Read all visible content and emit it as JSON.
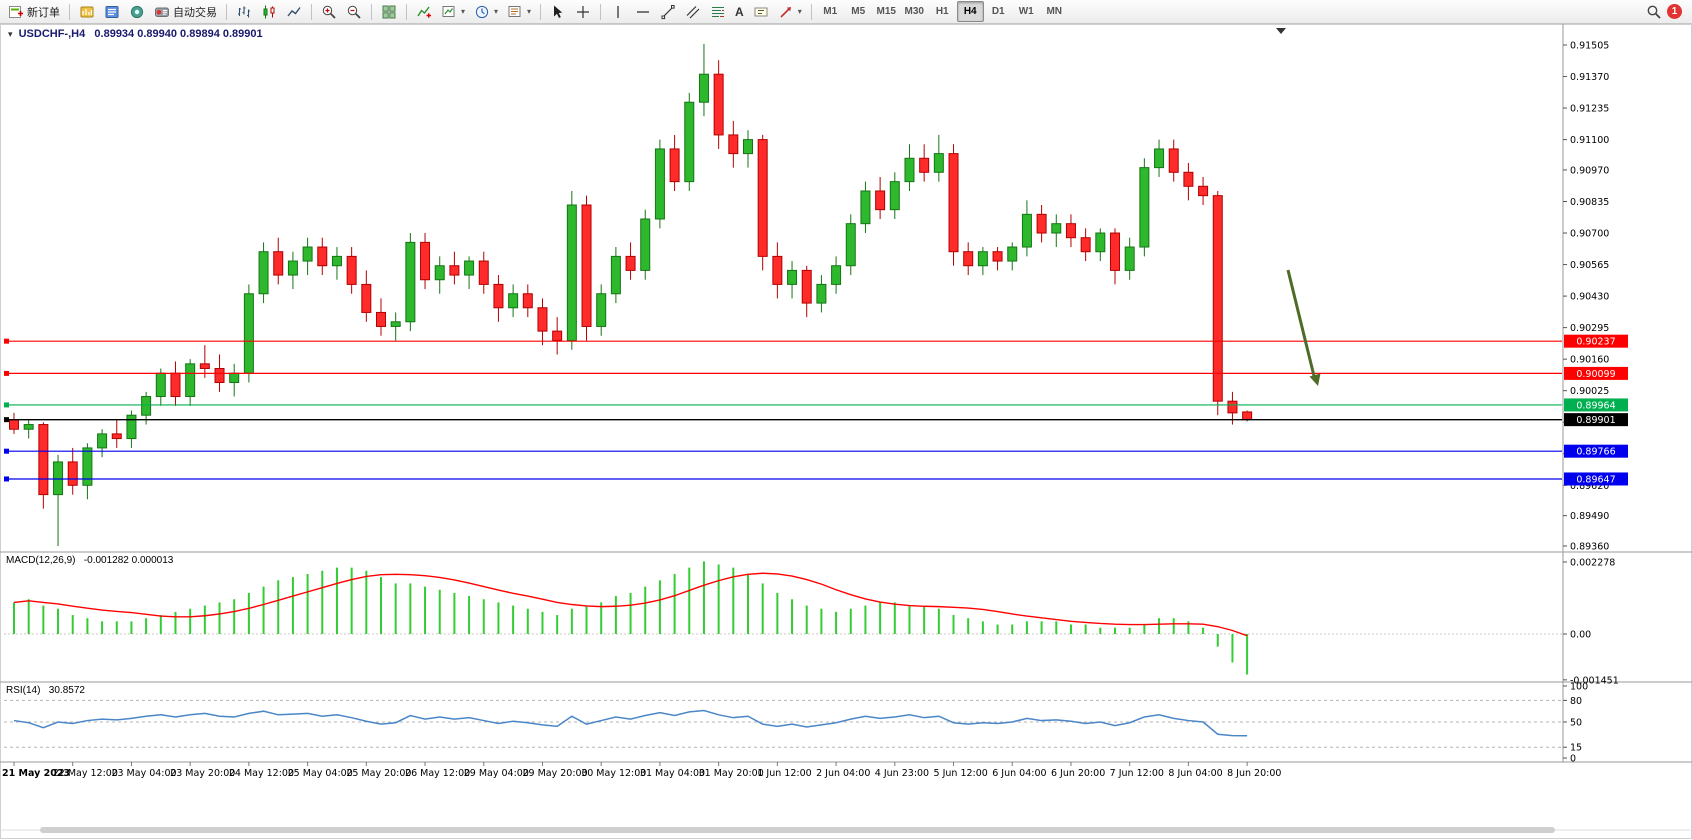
{
  "toolbar": {
    "new_order_label": "新订单",
    "auto_trading_label": "自动交易",
    "text_tool_label": "A",
    "timeframes": [
      "M1",
      "M5",
      "M15",
      "M30",
      "H1",
      "H4",
      "D1",
      "W1",
      "MN"
    ],
    "active_timeframe": "H4",
    "notification_count": "1"
  },
  "panels": {
    "price": {
      "title_symbol": "USDCHF-,H4",
      "title_ohlc": "0.89934 0.89940 0.89894 0.89901"
    },
    "macd": {
      "label": "MACD(12,26,9)",
      "values": "-0.001282 0.000013"
    },
    "rsi": {
      "label": "RSI(14)",
      "value": "30.8572"
    }
  },
  "colors": {
    "candle_up": "#2eb82e",
    "candle_up_stroke": "#157515",
    "candle_down": "#ff2a2a",
    "candle_down_stroke": "#b30000",
    "macd_hist": "#32cd32",
    "macd_signal": "#ff0000",
    "rsi_line": "#4a86c8",
    "grid_dash": "#b5b5b5",
    "axis_line": "#9a9a9a",
    "arrow": "#4f6b28"
  },
  "chart_data": {
    "type": "candlestick",
    "symbol": "USDCHF-",
    "timeframe": "H4",
    "candles": [
      [
        0.899,
        0.8993,
        0.8984,
        0.8986
      ],
      [
        0.8986,
        0.899,
        0.8982,
        0.8988
      ],
      [
        0.8988,
        0.8989,
        0.8952,
        0.8958
      ],
      [
        0.8958,
        0.8975,
        0.8936,
        0.8972
      ],
      [
        0.8972,
        0.8978,
        0.8958,
        0.8962
      ],
      [
        0.8962,
        0.898,
        0.8956,
        0.8978
      ],
      [
        0.8978,
        0.8986,
        0.8974,
        0.8984
      ],
      [
        0.8984,
        0.899,
        0.8978,
        0.8982
      ],
      [
        0.8982,
        0.8994,
        0.8978,
        0.8992
      ],
      [
        0.8992,
        0.9002,
        0.8988,
        0.9
      ],
      [
        0.9,
        0.9012,
        0.8996,
        0.901
      ],
      [
        0.901,
        0.9015,
        0.8996,
        0.9
      ],
      [
        0.9,
        0.9016,
        0.8996,
        0.9014
      ],
      [
        0.9014,
        0.9022,
        0.9008,
        0.9012
      ],
      [
        0.9012,
        0.9018,
        0.9002,
        0.9006
      ],
      [
        0.9006,
        0.9014,
        0.9,
        0.901
      ],
      [
        0.901,
        0.9048,
        0.9006,
        0.9044
      ],
      [
        0.9044,
        0.9066,
        0.904,
        0.9062
      ],
      [
        0.9062,
        0.9068,
        0.9048,
        0.9052
      ],
      [
        0.9052,
        0.9062,
        0.9046,
        0.9058
      ],
      [
        0.9058,
        0.9068,
        0.9052,
        0.9064
      ],
      [
        0.9064,
        0.9068,
        0.9052,
        0.9056
      ],
      [
        0.9056,
        0.9064,
        0.905,
        0.906
      ],
      [
        0.906,
        0.9064,
        0.9044,
        0.9048
      ],
      [
        0.9048,
        0.9054,
        0.9032,
        0.9036
      ],
      [
        0.9036,
        0.9042,
        0.9026,
        0.903
      ],
      [
        0.903,
        0.9036,
        0.9024,
        0.9032
      ],
      [
        0.9032,
        0.907,
        0.9028,
        0.9066
      ],
      [
        0.9066,
        0.907,
        0.9046,
        0.905
      ],
      [
        0.905,
        0.906,
        0.9044,
        0.9056
      ],
      [
        0.9056,
        0.9062,
        0.9048,
        0.9052
      ],
      [
        0.9052,
        0.906,
        0.9046,
        0.9058
      ],
      [
        0.9058,
        0.9062,
        0.9044,
        0.9048
      ],
      [
        0.9048,
        0.9052,
        0.9032,
        0.9038
      ],
      [
        0.9038,
        0.9048,
        0.9034,
        0.9044
      ],
      [
        0.9044,
        0.9048,
        0.9034,
        0.9038
      ],
      [
        0.9038,
        0.9042,
        0.9022,
        0.9028
      ],
      [
        0.9028,
        0.9034,
        0.9018,
        0.9024
      ],
      [
        0.9024,
        0.9088,
        0.902,
        0.9082
      ],
      [
        0.9082,
        0.9086,
        0.9024,
        0.903
      ],
      [
        0.903,
        0.9048,
        0.9026,
        0.9044
      ],
      [
        0.9044,
        0.9064,
        0.904,
        0.906
      ],
      [
        0.906,
        0.9066,
        0.905,
        0.9054
      ],
      [
        0.9054,
        0.908,
        0.905,
        0.9076
      ],
      [
        0.9076,
        0.911,
        0.9072,
        0.9106
      ],
      [
        0.9106,
        0.9112,
        0.9088,
        0.9092
      ],
      [
        0.9092,
        0.913,
        0.9088,
        0.9126
      ],
      [
        0.9126,
        0.9151,
        0.912,
        0.9138
      ],
      [
        0.9138,
        0.9144,
        0.9106,
        0.9112
      ],
      [
        0.9112,
        0.9118,
        0.9098,
        0.9104
      ],
      [
        0.9104,
        0.9114,
        0.9098,
        0.911
      ],
      [
        0.911,
        0.9112,
        0.9054,
        0.906
      ],
      [
        0.906,
        0.9066,
        0.9042,
        0.9048
      ],
      [
        0.9048,
        0.9058,
        0.9042,
        0.9054
      ],
      [
        0.9054,
        0.9056,
        0.9034,
        0.904
      ],
      [
        0.904,
        0.9052,
        0.9036,
        0.9048
      ],
      [
        0.9048,
        0.906,
        0.9044,
        0.9056
      ],
      [
        0.9056,
        0.9078,
        0.9052,
        0.9074
      ],
      [
        0.9074,
        0.9092,
        0.907,
        0.9088
      ],
      [
        0.9088,
        0.9094,
        0.9076,
        0.908
      ],
      [
        0.908,
        0.9096,
        0.9076,
        0.9092
      ],
      [
        0.9092,
        0.9108,
        0.9088,
        0.9102
      ],
      [
        0.9102,
        0.9108,
        0.9092,
        0.9096
      ],
      [
        0.9096,
        0.9112,
        0.9092,
        0.9104
      ],
      [
        0.9104,
        0.9108,
        0.9056,
        0.9062
      ],
      [
        0.9062,
        0.9066,
        0.9052,
        0.9056
      ],
      [
        0.9056,
        0.9064,
        0.9052,
        0.9062
      ],
      [
        0.9062,
        0.9064,
        0.9054,
        0.9058
      ],
      [
        0.9058,
        0.9066,
        0.9054,
        0.9064
      ],
      [
        0.9064,
        0.9084,
        0.906,
        0.9078
      ],
      [
        0.9078,
        0.9082,
        0.9066,
        0.907
      ],
      [
        0.907,
        0.9078,
        0.9064,
        0.9074
      ],
      [
        0.9074,
        0.9078,
        0.9064,
        0.9068
      ],
      [
        0.9068,
        0.9072,
        0.9058,
        0.9062
      ],
      [
        0.9062,
        0.9072,
        0.9058,
        0.907
      ],
      [
        0.907,
        0.9072,
        0.9048,
        0.9054
      ],
      [
        0.9054,
        0.9068,
        0.905,
        0.9064
      ],
      [
        0.9064,
        0.9102,
        0.906,
        0.9098
      ],
      [
        0.9098,
        0.911,
        0.9094,
        0.9106
      ],
      [
        0.9106,
        0.911,
        0.9092,
        0.9096
      ],
      [
        0.9096,
        0.91,
        0.9084,
        0.909
      ],
      [
        0.909,
        0.9094,
        0.9082,
        0.9086
      ],
      [
        0.9086,
        0.9088,
        0.8992,
        0.8998
      ],
      [
        0.8998,
        0.9002,
        0.8988,
        0.8993
      ],
      [
        0.89934,
        0.8994,
        0.89894,
        0.89901
      ]
    ],
    "price_ticks": [
      "0.91505",
      "0.91370",
      "0.91235",
      "0.91100",
      "0.90970",
      "0.90835",
      "0.90700",
      "0.90565",
      "0.90430",
      "0.90295",
      "0.90160",
      "0.90025",
      "0.89890",
      "0.89755",
      "0.89620",
      "0.89490",
      "0.89360"
    ],
    "levels": [
      {
        "price": 0.90237,
        "label": "0.90237",
        "color": "#ff0000"
      },
      {
        "price": 0.90099,
        "label": "0.90099",
        "color": "#ff0000"
      },
      {
        "price": 0.89964,
        "label": "0.89964",
        "color": "#00b050"
      },
      {
        "price": 0.89901,
        "label": "0.89901",
        "color": "#000000"
      },
      {
        "price": 0.89766,
        "label": "0.89766",
        "color": "#0000ee"
      },
      {
        "price": 0.89647,
        "label": "0.89647",
        "color": "#0000ee"
      }
    ],
    "macd": {
      "hist": [
        0.001,
        0.0011,
        0.0009,
        0.0008,
        0.0006,
        0.0005,
        0.0004,
        0.0004,
        0.0004,
        0.0005,
        0.0006,
        0.0007,
        0.0008,
        0.0009,
        0.001,
        0.0011,
        0.0013,
        0.0015,
        0.0017,
        0.0018,
        0.0019,
        0.002,
        0.0021,
        0.0021,
        0.002,
        0.0018,
        0.0016,
        0.0016,
        0.0015,
        0.0014,
        0.0013,
        0.0012,
        0.0011,
        0.001,
        0.0009,
        0.0008,
        0.0007,
        0.0006,
        0.0008,
        0.0009,
        0.001,
        0.0012,
        0.0013,
        0.0015,
        0.0017,
        0.0019,
        0.0021,
        0.0023,
        0.0022,
        0.0021,
        0.0019,
        0.0016,
        0.0013,
        0.0011,
        0.0009,
        0.0008,
        0.0007,
        0.0008,
        0.0009,
        0.001,
        0.001,
        0.0009,
        0.0009,
        0.0008,
        0.0006,
        0.0005,
        0.0004,
        0.0003,
        0.0003,
        0.0004,
        0.0004,
        0.0004,
        0.0003,
        0.0003,
        0.0002,
        0.0002,
        0.0002,
        0.0003,
        0.0005,
        0.0005,
        0.0004,
        0.0002,
        -0.0004,
        -0.0009,
        -0.001282
      ],
      "ticks": [
        "0.002278",
        "0.00",
        "-0.001451"
      ]
    },
    "rsi": {
      "series": [
        52,
        49,
        42,
        50,
        48,
        52,
        54,
        53,
        55,
        58,
        60,
        57,
        60,
        62,
        58,
        57,
        62,
        65,
        60,
        61,
        62,
        58,
        60,
        56,
        51,
        47,
        49,
        59,
        54,
        57,
        54,
        56,
        52,
        48,
        51,
        49,
        46,
        44,
        58,
        47,
        52,
        57,
        54,
        59,
        63,
        59,
        64,
        66,
        60,
        56,
        58,
        47,
        44,
        47,
        43,
        46,
        49,
        54,
        58,
        55,
        57,
        60,
        56,
        58,
        49,
        47,
        49,
        48,
        50,
        55,
        52,
        53,
        51,
        48,
        50,
        45,
        49,
        57,
        60,
        55,
        52,
        50,
        33,
        31,
        30.86
      ],
      "ticks": [
        "100",
        "80",
        "50",
        "15",
        "0"
      ],
      "levels": [
        80,
        50,
        15
      ]
    },
    "time_labels": [
      "21 May 2023",
      "22 May 12:00",
      "23 May 04:00",
      "23 May 20:00",
      "24 May 12:00",
      "25 May 04:00",
      "25 May 20:00",
      "26 May 12:00",
      "29 May 04:00",
      "29 May 20:00",
      "30 May 12:00",
      "31 May 04:00",
      "31 May 20:00",
      "1 Jun 12:00",
      "2 Jun 04:00",
      "4 Jun 23:00",
      "5 Jun 12:00",
      "6 Jun 04:00",
      "6 Jun 20:00",
      "7 Jun 12:00",
      "8 Jun 04:00",
      "8 Jun 20:00"
    ],
    "arrow_annotation": {
      "color": "#4f6b28"
    }
  }
}
